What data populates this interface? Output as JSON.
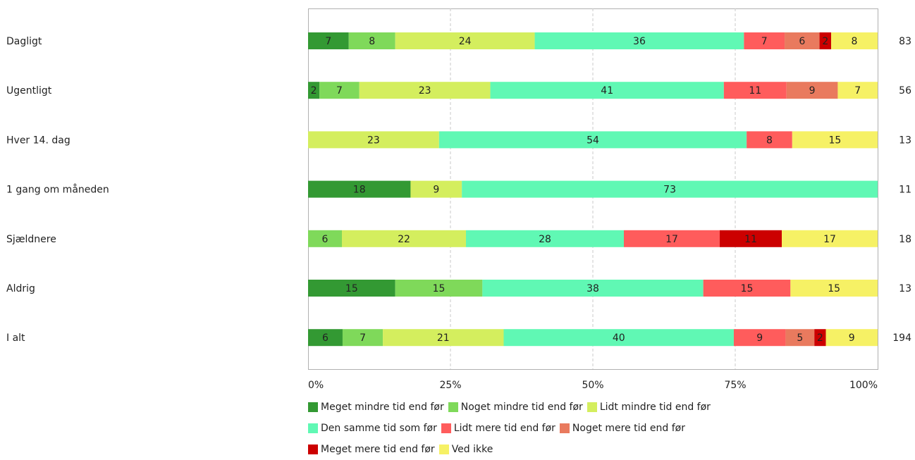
{
  "chart_data": {
    "type": "bar",
    "orientation": "horizontal",
    "stacked": "percent",
    "categories": [
      "Dagligt",
      "Ugentligt",
      "Hver 14. dag",
      "1 gang om måneden",
      "Sjældnere",
      "Aldrig",
      "I alt"
    ],
    "totals": [
      "83",
      "56",
      "13",
      "11",
      "18",
      "13",
      "194"
    ],
    "x_ticks": [
      "0%",
      "25%",
      "50%",
      "75%",
      "100%"
    ],
    "xlim": [
      0,
      100
    ],
    "grid": true,
    "legend_position": "bottom",
    "series": [
      {
        "name": "Meget mindre tid end før",
        "color": "#339933",
        "values": [
          7,
          2,
          0,
          18,
          0,
          15,
          6
        ]
      },
      {
        "name": "Noget mindre tid end før",
        "color": "#7fd95a",
        "values": [
          8,
          7,
          0,
          0,
          6,
          15,
          7
        ]
      },
      {
        "name": "Lidt mindre tid end før",
        "color": "#d4ee5e",
        "values": [
          24,
          23,
          23,
          9,
          22,
          0,
          21
        ]
      },
      {
        "name": "Den samme tid som før",
        "color": "#60f8b4",
        "values": [
          36,
          41,
          54,
          73,
          28,
          38,
          40
        ]
      },
      {
        "name": "Lidt mere tid end før",
        "color": "#ff5c5c",
        "values": [
          7,
          11,
          8,
          0,
          17,
          15,
          9
        ]
      },
      {
        "name": "Noget mere tid end før",
        "color": "#e97a5e",
        "values": [
          6,
          9,
          0,
          0,
          0,
          0,
          5
        ]
      },
      {
        "name": "Meget mere tid end før",
        "color": "#cc0000",
        "values": [
          2,
          0,
          0,
          0,
          11,
          0,
          2
        ]
      },
      {
        "name": "Ved ikke",
        "color": "#f6f165",
        "values": [
          8,
          7,
          15,
          0,
          17,
          15,
          9
        ]
      }
    ],
    "legend_rows": [
      [
        0,
        1,
        2
      ],
      [
        3,
        4,
        5
      ],
      [
        6,
        7
      ]
    ]
  }
}
